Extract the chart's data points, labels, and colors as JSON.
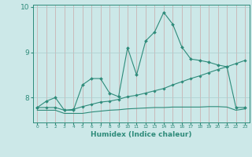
{
  "xlabel": "Humidex (Indice chaleur)",
  "x": [
    0,
    1,
    2,
    3,
    4,
    5,
    6,
    7,
    8,
    9,
    10,
    11,
    12,
    13,
    14,
    15,
    16,
    17,
    18,
    19,
    20,
    21,
    22,
    23
  ],
  "line1": [
    7.78,
    7.92,
    8.0,
    7.72,
    7.72,
    8.28,
    8.42,
    8.42,
    8.1,
    8.02,
    9.1,
    8.5,
    9.25,
    9.45,
    9.88,
    9.62,
    9.12,
    8.85,
    8.82,
    8.78,
    8.72,
    8.68,
    7.78,
    7.78
  ],
  "line2": [
    7.78,
    7.78,
    7.78,
    7.72,
    7.74,
    7.8,
    7.85,
    7.9,
    7.92,
    7.96,
    8.02,
    8.05,
    8.1,
    8.15,
    8.2,
    8.28,
    8.35,
    8.42,
    8.48,
    8.55,
    8.62,
    8.68,
    8.75,
    8.82
  ],
  "line3": [
    7.72,
    7.72,
    7.72,
    7.65,
    7.65,
    7.65,
    7.68,
    7.7,
    7.72,
    7.73,
    7.75,
    7.76,
    7.77,
    7.78,
    7.78,
    7.79,
    7.79,
    7.79,
    7.79,
    7.8,
    7.8,
    7.79,
    7.72,
    7.75
  ],
  "line_color": "#2e8b7a",
  "bg_color": "#cce8e8",
  "grid_color": "#aacece",
  "ylim_min": 7.45,
  "ylim_max": 10.05,
  "yticks": [
    8,
    9,
    10
  ],
  "ytick_labels": [
    "8",
    "9",
    "10"
  ],
  "xticks": [
    0,
    1,
    2,
    3,
    4,
    5,
    6,
    7,
    8,
    9,
    10,
    11,
    12,
    13,
    14,
    15,
    16,
    17,
    18,
    19,
    20,
    21,
    22,
    23
  ]
}
